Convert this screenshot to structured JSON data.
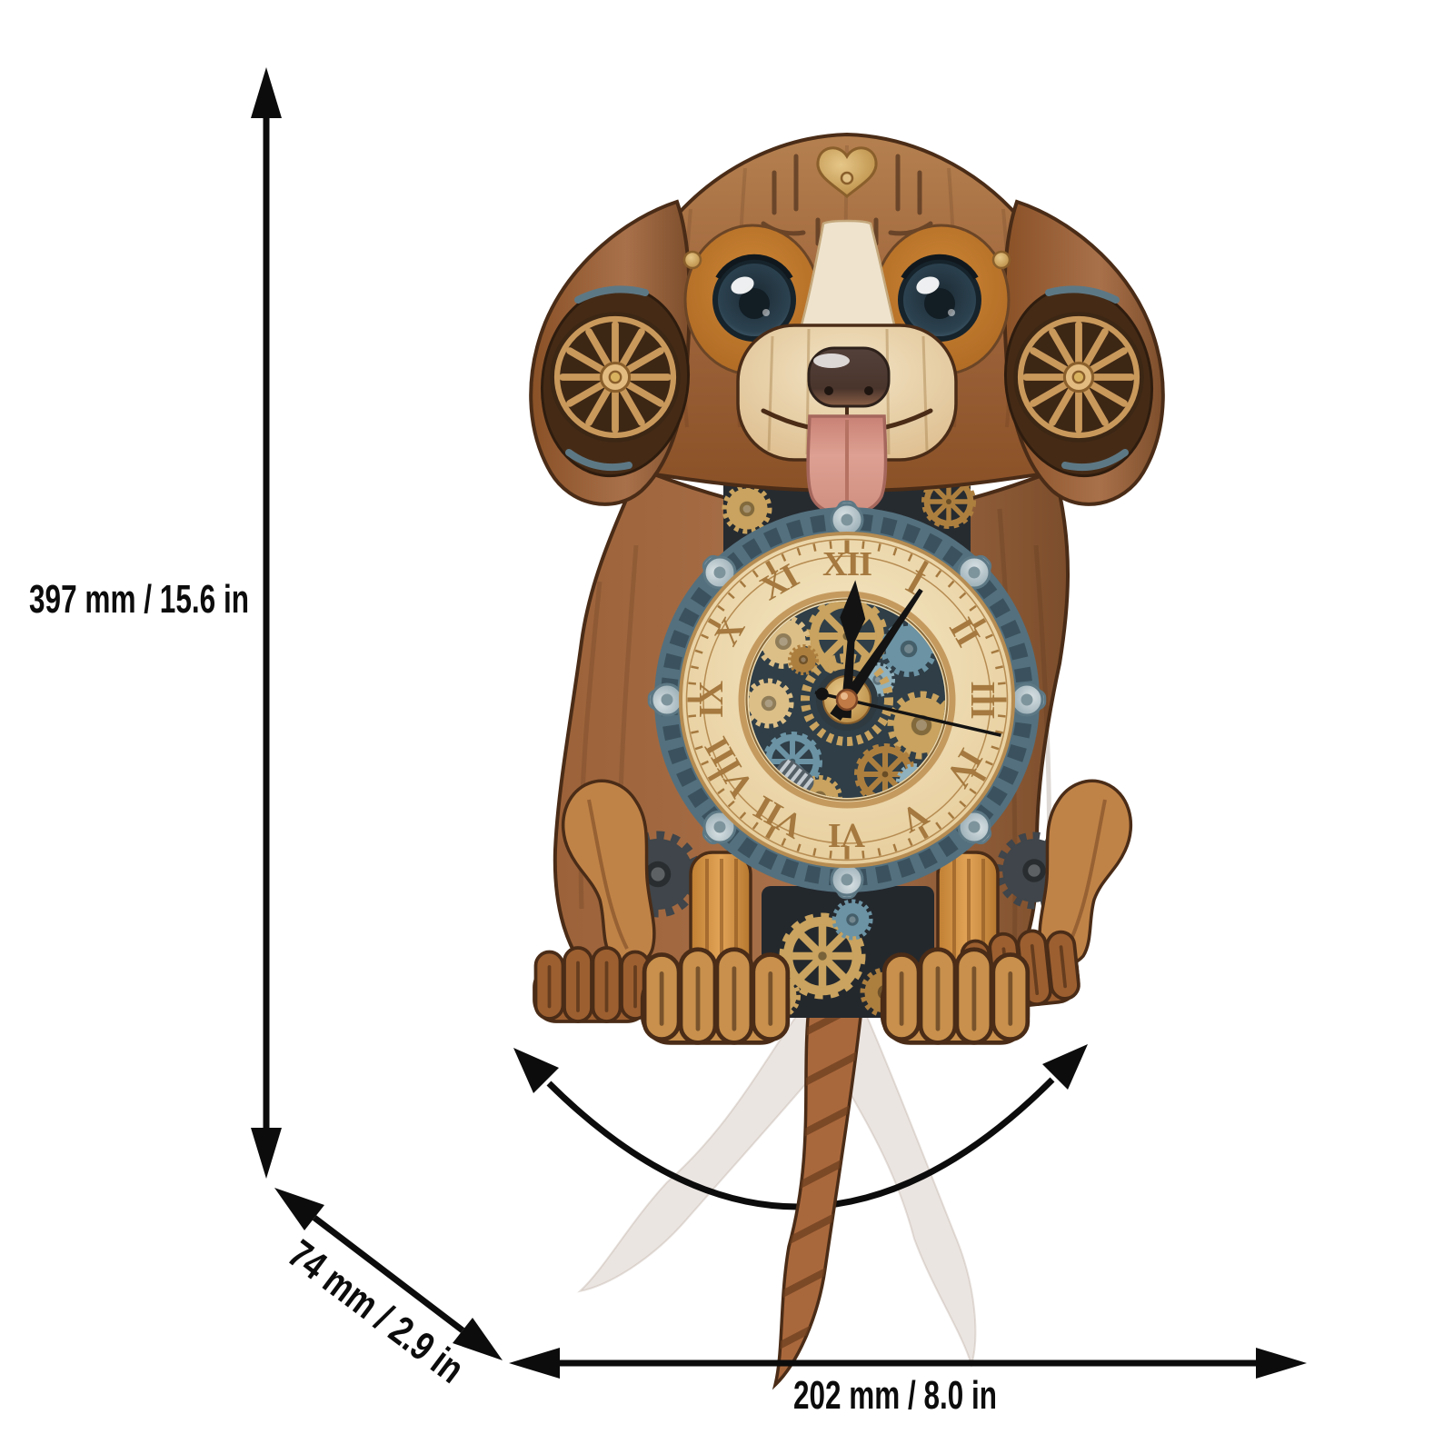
{
  "scene": {
    "type": "product-dimension-diagram",
    "background": "#ffffff",
    "subject": "wooden steampunk dog pendulum wall clock with swinging tail"
  },
  "dimensions": {
    "height": {
      "label": "397 mm / 15.6 in",
      "orientation": "vertical"
    },
    "depth": {
      "label": "74 mm / 2.9 in",
      "orientation": "diagonal"
    },
    "width": {
      "label": "202 mm / 8.0 in",
      "orientation": "horizontal"
    }
  },
  "clock": {
    "numerals": [
      "XII",
      "I",
      "II",
      "III",
      "IV",
      "V",
      "VI",
      "VII",
      "VIII",
      "IX",
      "X",
      "XI"
    ],
    "time": {
      "hour_angle_deg": 4,
      "minute_angle_deg": 34,
      "second_angle_deg": 103
    }
  },
  "colors": {
    "arrow": "#0c0c0c",
    "wood_dark": "#7d4e2c",
    "wood_mid": "#a9714a",
    "wood_light": "#d7a86b",
    "leg_amber": "#d59140",
    "outline": "#4a2c17",
    "dial_cream": "#f1e2bd",
    "numeral_gold": "#a5793f",
    "eye_patch_orange": "#c0762f",
    "eye_blue": "#27404f",
    "nose_brown": "#4f3a30",
    "tongue_pink": "#d89786",
    "gear_gold": "#c9a35f",
    "steel_blue": "#6b93a4",
    "steel_dark": "#3b525e",
    "copper": "#c07a45",
    "mechanism_dark": "#2b3238",
    "ghost_tail": "#d8cbc4"
  }
}
